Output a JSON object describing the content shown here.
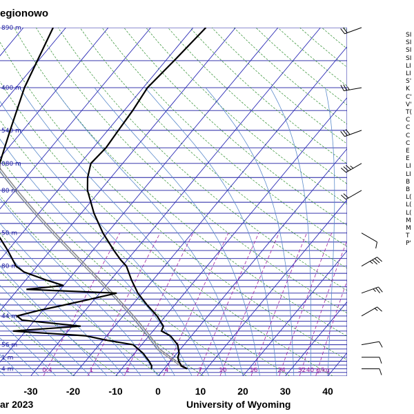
{
  "header": {
    "title": "egionowo"
  },
  "footer": {
    "date_label": "ar 2023",
    "credit": "University of Wyoming"
  },
  "index_labels": [
    "SI",
    "SI",
    "SI",
    "SI",
    "LI",
    "LI",
    "S'",
    "K",
    "C'",
    "V'",
    "T(",
    "C",
    "C",
    "C",
    "C",
    "E",
    "E",
    "LI",
    "LI",
    "B",
    "B",
    "L(",
    "L(",
    "L(",
    "M",
    "M",
    "T",
    "P'"
  ],
  "colors": {
    "isobar": "#1a1aa0",
    "isotherm": "#2a2ab5",
    "dry_adiabat": "#2a8c2a",
    "moist_adiabat": "#5a8acb",
    "mixing_ratio": "#a020a0",
    "sounding": "#000000",
    "parcel": "#8c8c8c",
    "axis_text": "#000000",
    "height_label": "#1a1aa0"
  },
  "chart_data": {
    "type": "skew-t log-p sounding",
    "xlabel_ticks": [
      -30,
      -20,
      -10,
      0,
      10,
      20,
      30,
      40
    ],
    "height_labels": [
      "890 m",
      "400 m",
      "540 m",
      "080 m",
      "80 m",
      "50 m",
      "80 m",
      "44 m",
      "56 m",
      "1 m",
      "4 m"
    ],
    "height_pressures": [
      100,
      150,
      200,
      250,
      300,
      400,
      500,
      700,
      850,
      925,
      1000
    ],
    "mixing_ratio_labels": [
      "0.4",
      "1",
      "2",
      "4",
      "7",
      "10",
      "16",
      "24",
      "32",
      "40 g/kg"
    ],
    "mixing_ratio_values": [
      0.4,
      1,
      2,
      4,
      7,
      10,
      16,
      24,
      32,
      40
    ],
    "temperature_profile": [
      {
        "p": 1000,
        "t": 5.5
      },
      {
        "p": 980,
        "t": 3.5
      },
      {
        "p": 950,
        "t": 2.0
      },
      {
        "p": 925,
        "t": 1.0
      },
      {
        "p": 900,
        "t": 0.5
      },
      {
        "p": 850,
        "t": -1.5
      },
      {
        "p": 800,
        "t": -5.0
      },
      {
        "p": 775,
        "t": -8.0
      },
      {
        "p": 750,
        "t": -8.5
      },
      {
        "p": 700,
        "t": -12.0
      },
      {
        "p": 650,
        "t": -16.5
      },
      {
        "p": 600,
        "t": -21.0
      },
      {
        "p": 550,
        "t": -25.0
      },
      {
        "p": 500,
        "t": -29.0
      },
      {
        "p": 480,
        "t": -31.5
      },
      {
        "p": 450,
        "t": -35.0
      },
      {
        "p": 400,
        "t": -41.0
      },
      {
        "p": 350,
        "t": -47.0
      },
      {
        "p": 300,
        "t": -53.0
      },
      {
        "p": 275,
        "t": -55.5
      },
      {
        "p": 250,
        "t": -57.5
      },
      {
        "p": 225,
        "t": -57.0
      },
      {
        "p": 200,
        "t": -57.5
      },
      {
        "p": 175,
        "t": -58.0
      },
      {
        "p": 150,
        "t": -59.0
      },
      {
        "p": 125,
        "t": -58.0
      },
      {
        "p": 100,
        "t": -57.0
      }
    ],
    "dewpoint_profile": [
      {
        "p": 1000,
        "t": -3.0
      },
      {
        "p": 980,
        "t": -3.5
      },
      {
        "p": 950,
        "t": -5.0
      },
      {
        "p": 925,
        "t": -6.5
      },
      {
        "p": 900,
        "t": -8.0
      },
      {
        "p": 850,
        "t": -12.0
      },
      {
        "p": 825,
        "t": -19.0
      },
      {
        "p": 800,
        "t": -25.0
      },
      {
        "p": 775,
        "t": -43.0
      },
      {
        "p": 750,
        "t": -28.0
      },
      {
        "p": 720,
        "t": -43.0
      },
      {
        "p": 700,
        "t": -45.0
      },
      {
        "p": 675,
        "t": -41.0
      },
      {
        "p": 650,
        "t": -36.0
      },
      {
        "p": 625,
        "t": -31.0
      },
      {
        "p": 600,
        "t": -26.0
      },
      {
        "p": 585,
        "t": -48.0
      },
      {
        "p": 570,
        "t": -40.0
      },
      {
        "p": 550,
        "t": -45.0
      },
      {
        "p": 520,
        "t": -52.0
      },
      {
        "p": 500,
        "t": -55.0
      },
      {
        "p": 450,
        "t": -60.0
      },
      {
        "p": 400,
        "t": -66.0
      },
      {
        "p": 350,
        "t": -70.0
      },
      {
        "p": 300,
        "t": -74.0
      },
      {
        "p": 250,
        "t": -79.0
      },
      {
        "p": 200,
        "t": -83.0
      },
      {
        "p": 150,
        "t": -88.0
      },
      {
        "p": 100,
        "t": -93.0
      }
    ],
    "wind_profile": [
      {
        "p": 1000,
        "dir": 90,
        "kt": 10
      },
      {
        "p": 925,
        "dir": 90,
        "kt": 10
      },
      {
        "p": 850,
        "dir": 80,
        "kt": 10
      },
      {
        "p": 700,
        "dir": 60,
        "kt": 15
      },
      {
        "p": 600,
        "dir": 70,
        "kt": 25
      },
      {
        "p": 500,
        "dir": 60,
        "kt": 35
      },
      {
        "p": 400,
        "dir": 120,
        "kt": 10
      },
      {
        "p": 300,
        "dir": 240,
        "kt": 20
      },
      {
        "p": 250,
        "dir": 240,
        "kt": 35
      },
      {
        "p": 200,
        "dir": 250,
        "kt": 30
      },
      {
        "p": 150,
        "dir": 260,
        "kt": 25
      },
      {
        "p": 100,
        "dir": 250,
        "kt": 20
      }
    ]
  }
}
